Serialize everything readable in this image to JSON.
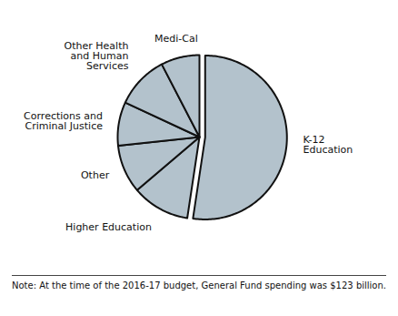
{
  "chart_data": {
    "type": "pie",
    "categories": [
      "K-12\nEducation",
      "Higher Education",
      "Other",
      "Corrections and\nCriminal Justice",
      "Other Health\nand Human\nServices",
      "Medi-Cal"
    ],
    "values": [
      55,
      12,
      10,
      9,
      11,
      8
    ],
    "color": "#b3c2cc",
    "annotation": "Note: At the time of the 2016-17 budget, General Fund spending was $123 billion."
  }
}
